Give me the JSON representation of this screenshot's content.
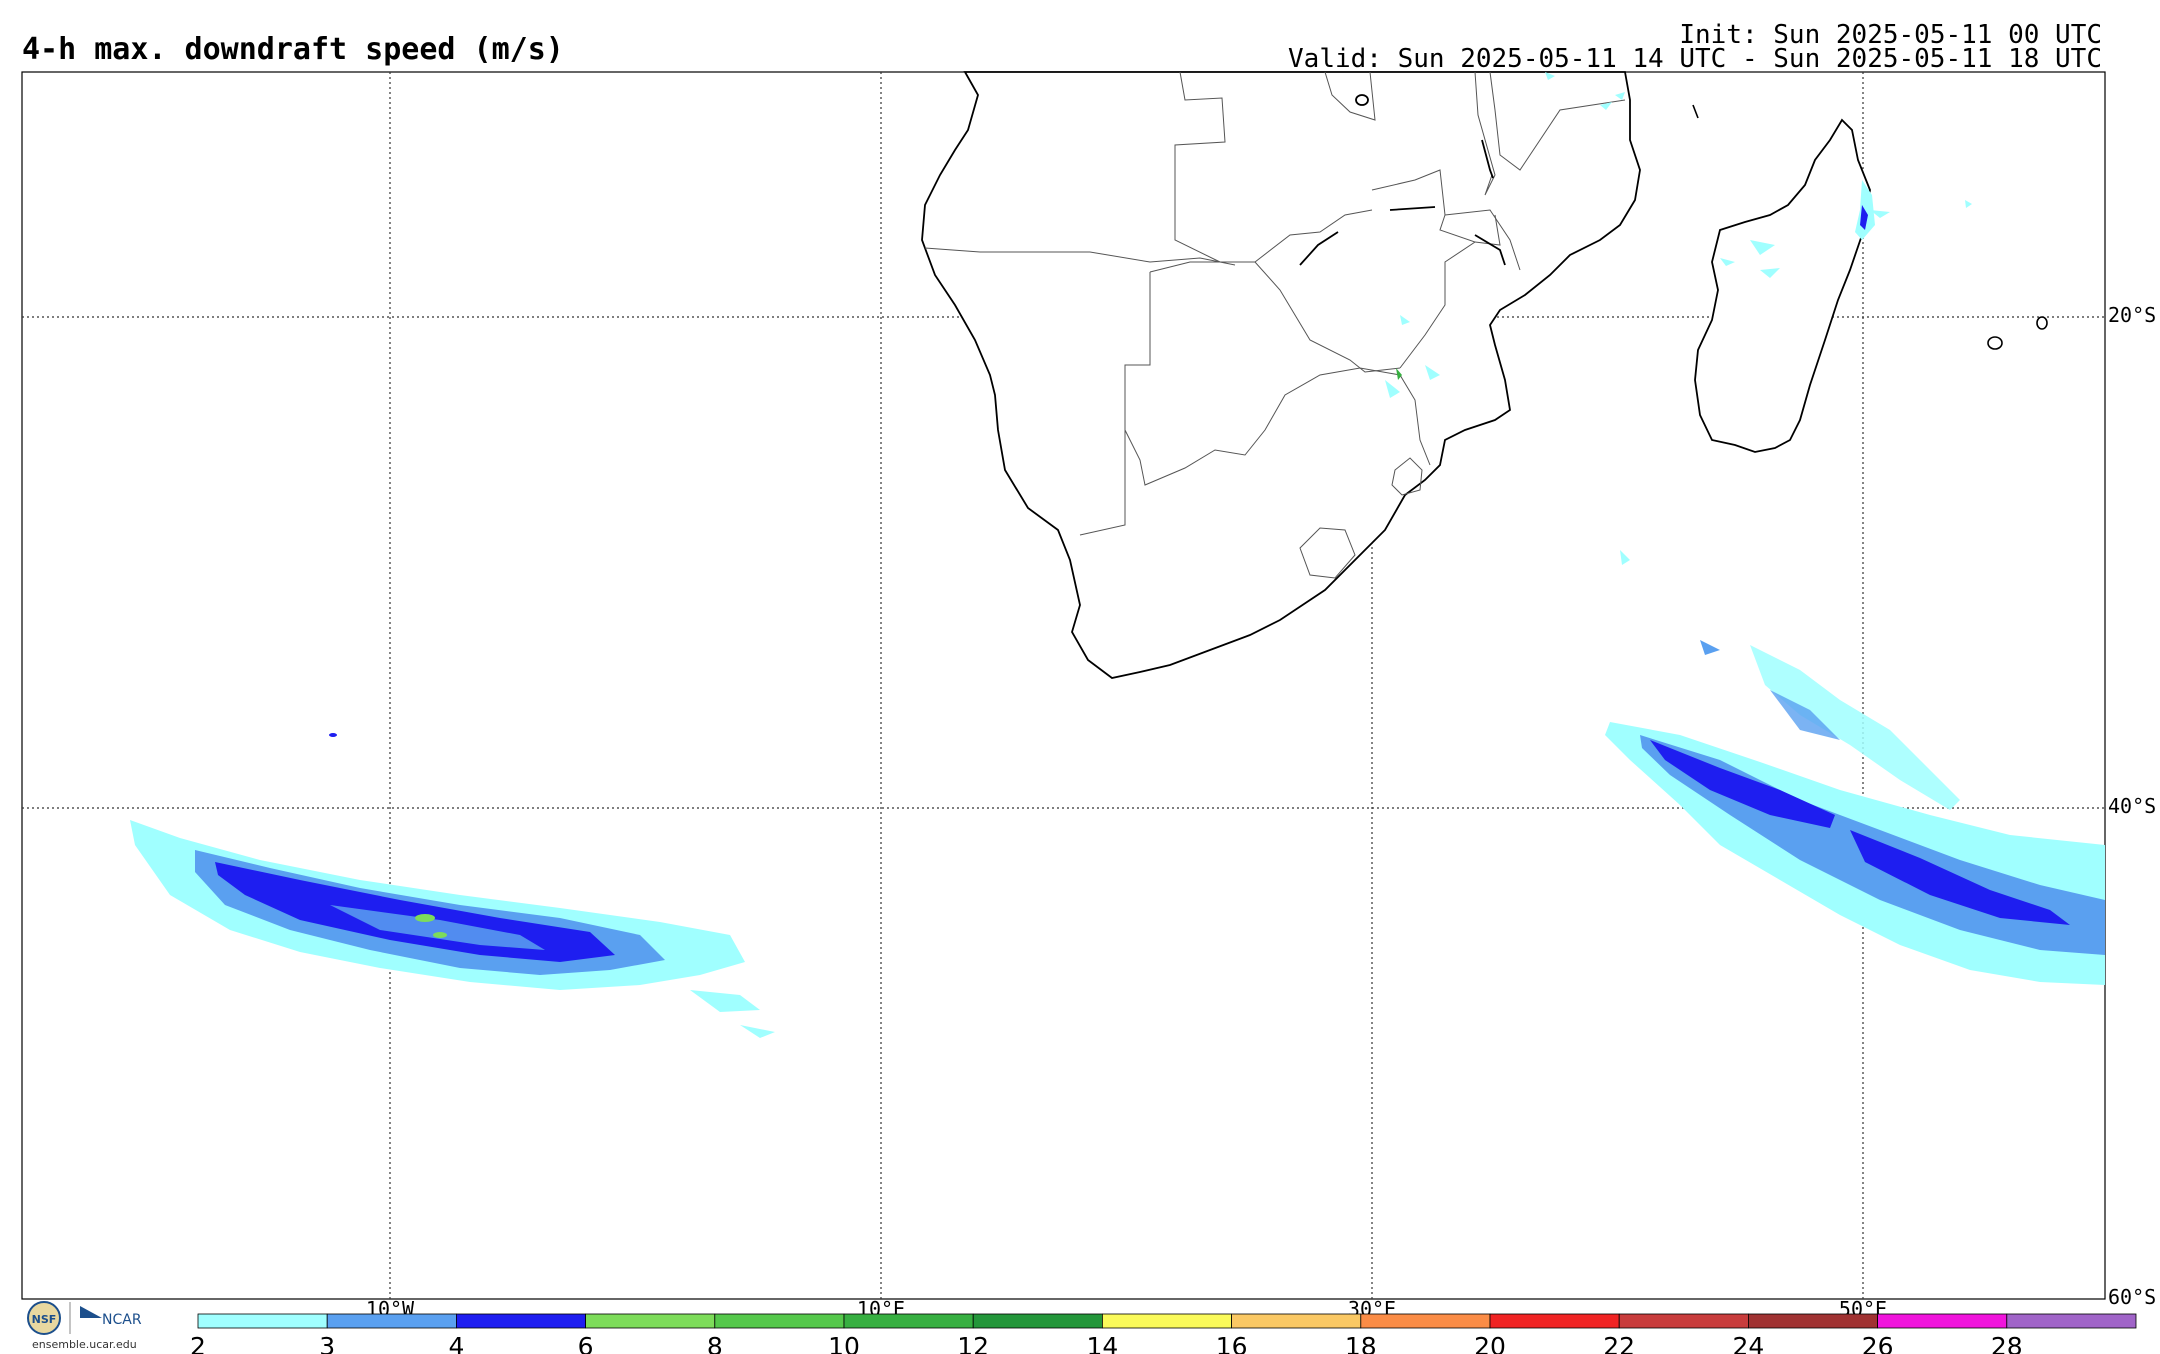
{
  "header": {
    "title": "4-h max. downdraft speed (m/s)",
    "init": "Init: Sun 2025-05-11 00 UTC",
    "valid": "Valid: Sun 2025-05-11 14 UTC - Sun 2025-05-11 18 UTC"
  },
  "map": {
    "lon_labels": [
      "10°W",
      "10°E",
      "30°E",
      "50°E"
    ],
    "lat_labels": [
      "20°S",
      "40°S",
      "60°S"
    ]
  },
  "colorbar": {
    "labels": [
      "2",
      "3",
      "4",
      "6",
      "8",
      "10",
      "12",
      "14",
      "16",
      "18",
      "20",
      "22",
      "24",
      "26",
      "28"
    ],
    "colors": [
      "#a0ffff",
      "#5aa0f0",
      "#1e1ef0",
      "#7ddc5a",
      "#55c84b",
      "#37af41",
      "#23963a",
      "#fafa5a",
      "#fac864",
      "#fa8c46",
      "#f02323",
      "#c83c3c",
      "#a03232",
      "#f014dc",
      "#a064c8"
    ]
  },
  "logos": {
    "nsf": "NSF",
    "ncar": "NCAR",
    "url": "ensemble.ucar.edu"
  }
}
